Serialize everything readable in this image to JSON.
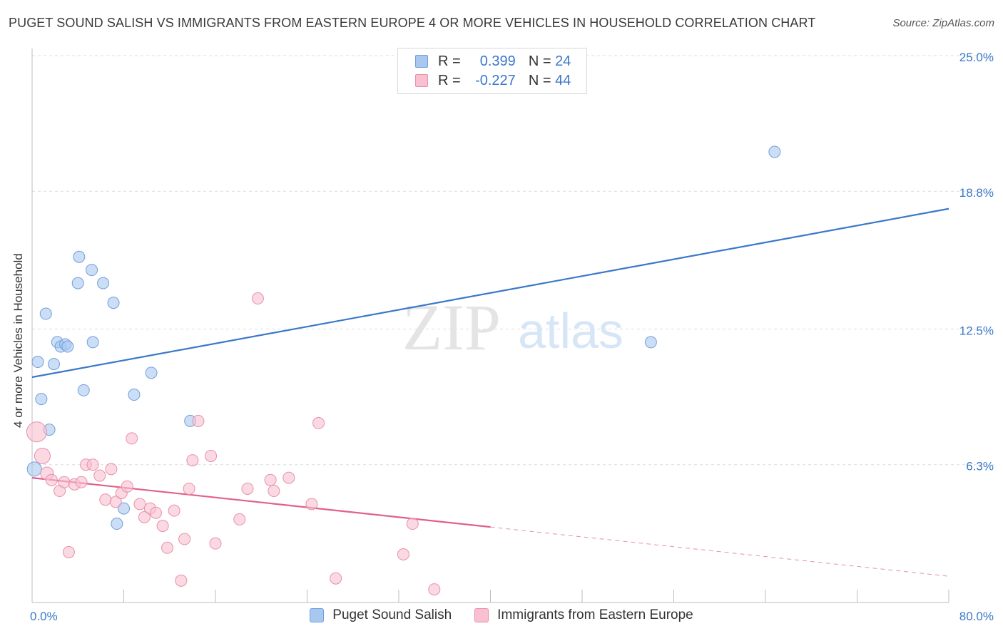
{
  "title": "PUGET SOUND SALISH VS IMMIGRANTS FROM EASTERN EUROPE 4 OR MORE VEHICLES IN HOUSEHOLD CORRELATION CHART",
  "source": "Source: ZipAtlas.com",
  "watermark": {
    "zip": "ZIP",
    "atlas": "atlas"
  },
  "legend": {
    "r_label": "R =",
    "n_label": "N =",
    "rows": [
      {
        "r": "0.399",
        "n": "24",
        "color": "#a9c8f0",
        "border": "#6f9fdc"
      },
      {
        "r": "-0.227",
        "n": "44",
        "color": "#f8c0d0",
        "border": "#e890ac"
      }
    ]
  },
  "chart_data": {
    "type": "scatter",
    "title": "PUGET SOUND SALISH VS IMMIGRANTS FROM EASTERN EUROPE 4 OR MORE VEHICLES IN HOUSEHOLD CORRELATION CHART",
    "xlabel": "",
    "ylabel": "4 or more Vehicles in Household",
    "xlim": [
      0,
      80
    ],
    "ylim": [
      0,
      25
    ],
    "x_tick_labels": [
      "0.0%",
      "80.0%"
    ],
    "y_ticks": [
      6.3,
      12.5,
      18.8,
      25.0
    ],
    "y_tick_labels": [
      "6.3%",
      "12.5%",
      "18.8%",
      "25.0%"
    ],
    "grid": "horizontal dashed",
    "legend_position": "top-center",
    "series": [
      {
        "name": "Puget Sound Salish",
        "color": "#a9c8f0",
        "stroke": "#6f9fdc",
        "line_color": "#3a78c9",
        "points": [
          [
            0.2,
            6.1
          ],
          [
            0.5,
            11.0
          ],
          [
            0.8,
            9.3
          ],
          [
            1.2,
            13.2
          ],
          [
            1.5,
            7.9
          ],
          [
            1.9,
            10.9
          ],
          [
            2.2,
            11.9
          ],
          [
            2.5,
            11.7
          ],
          [
            2.9,
            11.8
          ],
          [
            3.1,
            11.7
          ],
          [
            4.5,
            9.7
          ],
          [
            4.0,
            14.6
          ],
          [
            4.1,
            15.8
          ],
          [
            5.2,
            15.2
          ],
          [
            5.3,
            11.9
          ],
          [
            6.2,
            14.6
          ],
          [
            7.1,
            13.7
          ],
          [
            7.4,
            3.6
          ],
          [
            8.0,
            4.3
          ],
          [
            8.9,
            9.5
          ],
          [
            10.4,
            10.5
          ],
          [
            13.8,
            8.3
          ],
          [
            54.0,
            11.9
          ],
          [
            64.8,
            20.6
          ]
        ],
        "sizes": [
          10,
          8,
          8,
          8,
          8,
          8,
          8,
          8,
          8,
          8,
          8,
          8,
          8,
          8,
          8,
          8,
          8,
          8,
          8,
          8,
          8,
          8,
          8,
          8
        ],
        "trend": {
          "x": [
            0,
            80
          ],
          "y": [
            10.3,
            18.0
          ]
        }
      },
      {
        "name": "Immigrants from Eastern Europe",
        "color": "#f8c0d0",
        "stroke": "#e890ac",
        "line_color": "#e0608a",
        "points": [
          [
            0.4,
            7.8
          ],
          [
            0.9,
            6.7
          ],
          [
            1.3,
            5.9
          ],
          [
            1.7,
            5.6
          ],
          [
            2.4,
            5.1
          ],
          [
            2.8,
            5.5
          ],
          [
            3.2,
            2.3
          ],
          [
            3.7,
            5.4
          ],
          [
            4.3,
            5.5
          ],
          [
            4.7,
            6.3
          ],
          [
            5.3,
            6.3
          ],
          [
            5.9,
            5.8
          ],
          [
            6.4,
            4.7
          ],
          [
            6.9,
            6.1
          ],
          [
            7.3,
            4.6
          ],
          [
            7.8,
            5.0
          ],
          [
            8.3,
            5.3
          ],
          [
            8.7,
            7.5
          ],
          [
            9.4,
            4.5
          ],
          [
            9.8,
            3.9
          ],
          [
            10.3,
            4.3
          ],
          [
            10.8,
            4.1
          ],
          [
            11.4,
            3.5
          ],
          [
            11.8,
            2.5
          ],
          [
            12.4,
            4.2
          ],
          [
            13.0,
            1.0
          ],
          [
            13.3,
            2.9
          ],
          [
            13.7,
            5.2
          ],
          [
            14.0,
            6.5
          ],
          [
            14.5,
            8.3
          ],
          [
            15.6,
            6.7
          ],
          [
            16.0,
            2.7
          ],
          [
            18.1,
            3.8
          ],
          [
            18.8,
            5.2
          ],
          [
            19.7,
            13.9
          ],
          [
            20.8,
            5.6
          ],
          [
            21.1,
            5.1
          ],
          [
            22.4,
            5.7
          ],
          [
            24.4,
            4.5
          ],
          [
            25.0,
            8.2
          ],
          [
            26.5,
            1.1
          ],
          [
            32.4,
            2.2
          ],
          [
            33.2,
            3.6
          ],
          [
            35.1,
            0.6
          ]
        ],
        "sizes": [
          14,
          11,
          9,
          8,
          8,
          8,
          8,
          8,
          8,
          8,
          8,
          8,
          8,
          8,
          8,
          8,
          8,
          8,
          8,
          8,
          8,
          8,
          8,
          8,
          8,
          8,
          8,
          8,
          8,
          8,
          8,
          8,
          8,
          8,
          8,
          8,
          8,
          8,
          8,
          8,
          8,
          8,
          8,
          8
        ],
        "trend": {
          "x": [
            0,
            80
          ],
          "y": [
            5.7,
            1.2
          ],
          "solid_until_x": 40
        }
      }
    ]
  }
}
